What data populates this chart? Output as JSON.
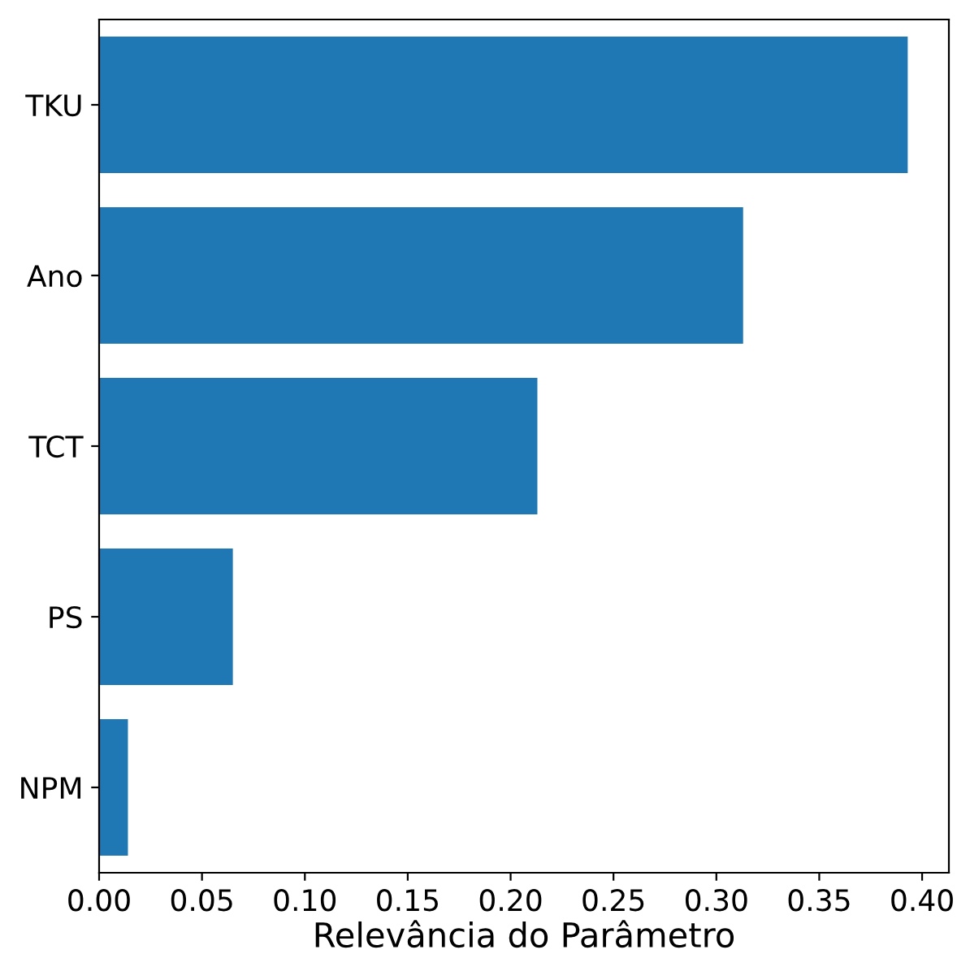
{
  "chart_data": {
    "type": "bar",
    "orientation": "horizontal",
    "xlabel": "Relevância do Parâmetro",
    "categories": [
      "TKU",
      "Ano",
      "TCT",
      "PS",
      "NPM"
    ],
    "values": [
      0.393,
      0.313,
      0.213,
      0.065,
      0.014
    ],
    "color": "#1f77b4",
    "xlim": [
      0,
      0.413
    ],
    "xticks": [
      {
        "value": 0,
        "label": "0.00"
      },
      0.05,
      {
        "value": 0.1,
        "label": "0.10"
      },
      0.15,
      {
        "value": 0.2,
        "label": "0.20"
      },
      0.25,
      {
        "value": 0.3,
        "label": "0.30"
      },
      0.35,
      {
        "value": 0.4,
        "label": "0.40"
      }
    ],
    "grid": false,
    "legend": false
  }
}
